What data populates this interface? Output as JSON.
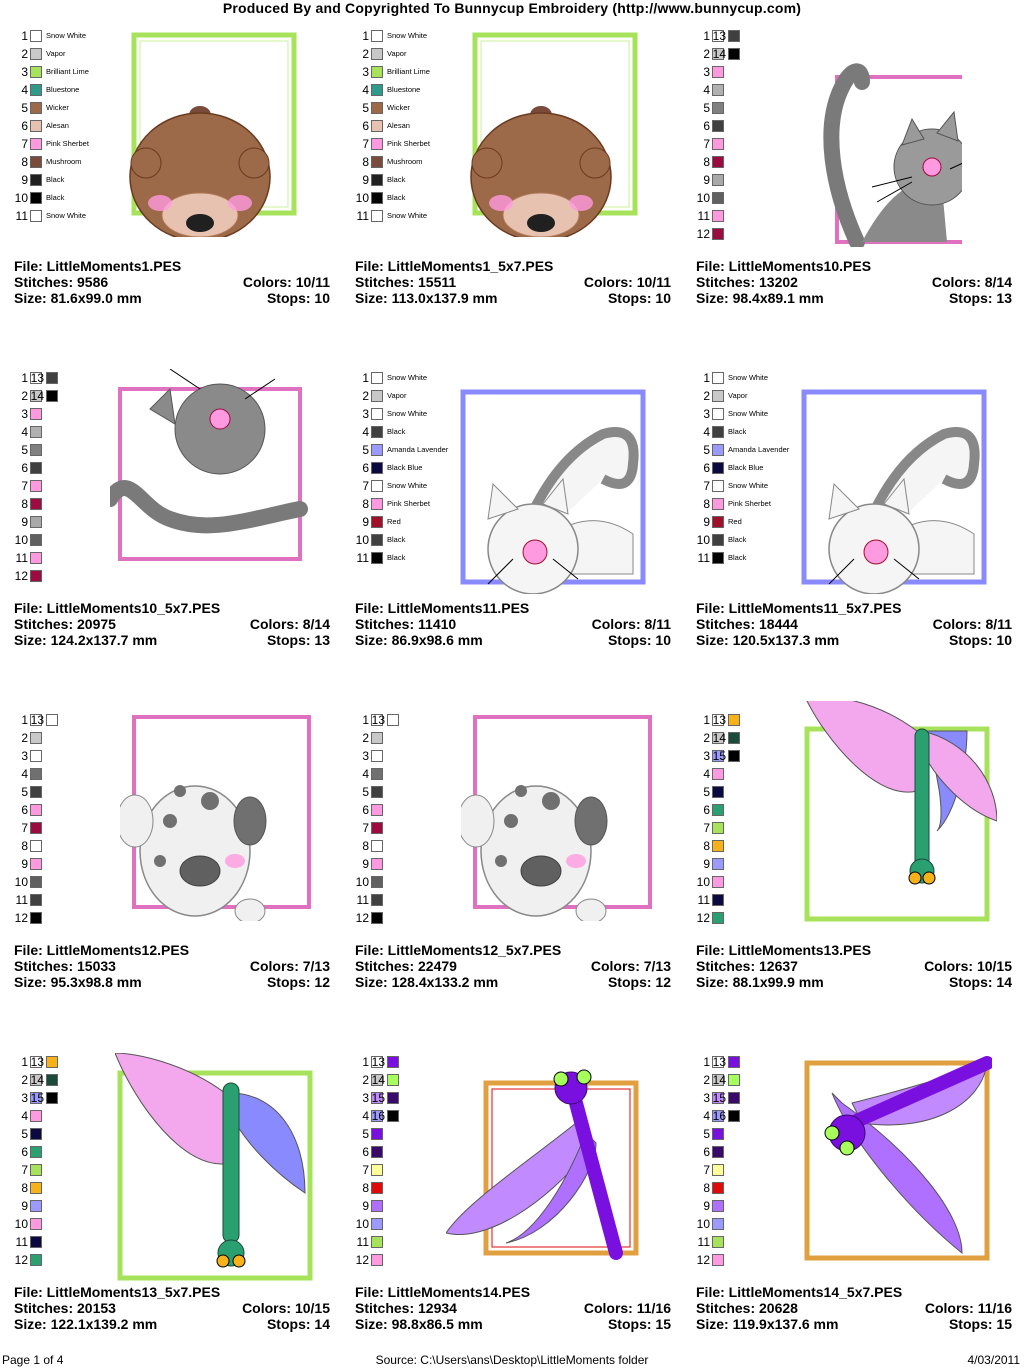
{
  "header": {
    "title": "Produced By and Copyrighted To Bunnycup Embroidery (http://www.bunnycup.com)"
  },
  "labels": {
    "file": "File:",
    "stitches": "Stitches:",
    "size": "Size:",
    "colors": "Colors:",
    "stops": "Stops:"
  },
  "designs": [
    {
      "file": "LittleMoments1.PES",
      "stitches": "9586",
      "size": "81.6x99.0 mm",
      "colors": "10/11",
      "stops": "10",
      "art": "bear",
      "palette": [
        {
          "n": "1",
          "c": "#ffffff",
          "name": "Snow White"
        },
        {
          "n": "2",
          "c": "#c8c8c8",
          "name": "Vapor"
        },
        {
          "n": "3",
          "c": "#a6e35a",
          "name": "Brilliant Lime"
        },
        {
          "n": "4",
          "c": "#2f9a8a",
          "name": "Bluestone"
        },
        {
          "n": "5",
          "c": "#9c6a48",
          "name": "Wicker"
        },
        {
          "n": "6",
          "c": "#e8c2b0",
          "name": "Alesan"
        },
        {
          "n": "7",
          "c": "#ff9ae0",
          "name": "Pink Sherbet"
        },
        {
          "n": "8",
          "c": "#7a4a3a",
          "name": "Mushroom"
        },
        {
          "n": "9",
          "c": "#202020",
          "name": "Black"
        },
        {
          "n": "10",
          "c": "#000000",
          "name": "Black"
        },
        {
          "n": "11",
          "c": "#ffffff",
          "name": "Snow White"
        }
      ],
      "palette2": []
    },
    {
      "file": "LittleMoments1_5x7.PES",
      "stitches": "15511",
      "size": "113.0x137.9 mm",
      "colors": "10/11",
      "stops": "10",
      "art": "bear",
      "palette": [
        {
          "n": "1",
          "c": "#ffffff",
          "name": "Snow White"
        },
        {
          "n": "2",
          "c": "#c8c8c8",
          "name": "Vapor"
        },
        {
          "n": "3",
          "c": "#a6e35a",
          "name": "Brilliant Lime"
        },
        {
          "n": "4",
          "c": "#2f9a8a",
          "name": "Bluestone"
        },
        {
          "n": "5",
          "c": "#9c6a48",
          "name": "Wicker"
        },
        {
          "n": "6",
          "c": "#e8c2b0",
          "name": "Alesan"
        },
        {
          "n": "7",
          "c": "#ff9ae0",
          "name": "Pink Sherbet"
        },
        {
          "n": "8",
          "c": "#7a4a3a",
          "name": "Mushroom"
        },
        {
          "n": "9",
          "c": "#202020",
          "name": "Black"
        },
        {
          "n": "10",
          "c": "#000000",
          "name": "Black"
        },
        {
          "n": "11",
          "c": "#ffffff",
          "name": "Snow White"
        }
      ],
      "palette2": []
    },
    {
      "file": "LittleMoments10.PES",
      "stitches": "13202",
      "size": "98.4x89.1 mm",
      "colors": "8/14",
      "stops": "13",
      "art": "cat-gray",
      "palette": [
        {
          "n": "1",
          "c": "#ffffff",
          "name": ""
        },
        {
          "n": "2",
          "c": "#c8c8c8",
          "name": ""
        },
        {
          "n": "3",
          "c": "#ff9ae0",
          "name": ""
        },
        {
          "n": "4",
          "c": "#b0b0b0",
          "name": ""
        },
        {
          "n": "5",
          "c": "#808080",
          "name": ""
        },
        {
          "n": "6",
          "c": "#404040",
          "name": ""
        },
        {
          "n": "7",
          "c": "#ff9ae0",
          "name": ""
        },
        {
          "n": "8",
          "c": "#9c0a40",
          "name": ""
        },
        {
          "n": "9",
          "c": "#a8a8a8",
          "name": ""
        },
        {
          "n": "10",
          "c": "#606060",
          "name": ""
        },
        {
          "n": "11",
          "c": "#ff9ae0",
          "name": ""
        },
        {
          "n": "12",
          "c": "#9c0a40",
          "name": ""
        }
      ],
      "palette2": [
        {
          "n": "13",
          "c": "#404040"
        },
        {
          "n": "14",
          "c": "#000000"
        }
      ]
    },
    {
      "file": "LittleMoments10_5x7.PES",
      "stitches": "20975",
      "size": "124.2x137.7 mm",
      "colors": "8/14",
      "stops": "13",
      "art": "cat-gray2",
      "palette": [
        {
          "n": "1",
          "c": "#ffffff",
          "name": ""
        },
        {
          "n": "2",
          "c": "#c8c8c8",
          "name": ""
        },
        {
          "n": "3",
          "c": "#ff9ae0",
          "name": ""
        },
        {
          "n": "4",
          "c": "#b0b0b0",
          "name": ""
        },
        {
          "n": "5",
          "c": "#808080",
          "name": ""
        },
        {
          "n": "6",
          "c": "#404040",
          "name": ""
        },
        {
          "n": "7",
          "c": "#ff9ae0",
          "name": ""
        },
        {
          "n": "8",
          "c": "#9c0a40",
          "name": ""
        },
        {
          "n": "9",
          "c": "#a8a8a8",
          "name": ""
        },
        {
          "n": "10",
          "c": "#606060",
          "name": ""
        },
        {
          "n": "11",
          "c": "#ff9ae0",
          "name": ""
        },
        {
          "n": "12",
          "c": "#9c0a40",
          "name": ""
        }
      ],
      "palette2": [
        {
          "n": "13",
          "c": "#404040"
        },
        {
          "n": "14",
          "c": "#000000"
        }
      ]
    },
    {
      "file": "LittleMoments11.PES",
      "stitches": "11410",
      "size": "86.9x98.6 mm",
      "colors": "8/11",
      "stops": "10",
      "art": "cat-white",
      "palette": [
        {
          "n": "1",
          "c": "#ffffff",
          "name": "Snow White"
        },
        {
          "n": "2",
          "c": "#c8c8c8",
          "name": "Vapor"
        },
        {
          "n": "3",
          "c": "#ffffff",
          "name": "Snow White"
        },
        {
          "n": "4",
          "c": "#404040",
          "name": "Black"
        },
        {
          "n": "5",
          "c": "#9a9aff",
          "name": "Amanda Lavender"
        },
        {
          "n": "6",
          "c": "#0a0a40",
          "name": "Black Blue"
        },
        {
          "n": "7",
          "c": "#ffffff",
          "name": "Snow White"
        },
        {
          "n": "8",
          "c": "#ff9ae0",
          "name": "Pink Sherbet"
        },
        {
          "n": "9",
          "c": "#a0102a",
          "name": "Red"
        },
        {
          "n": "10",
          "c": "#404040",
          "name": "Black"
        },
        {
          "n": "11",
          "c": "#000000",
          "name": "Black"
        }
      ],
      "palette2": []
    },
    {
      "file": "LittleMoments11_5x7.PES",
      "stitches": "18444",
      "size": "120.5x137.3 mm",
      "colors": "8/11",
      "stops": "10",
      "art": "cat-white",
      "palette": [
        {
          "n": "1",
          "c": "#ffffff",
          "name": "Snow White"
        },
        {
          "n": "2",
          "c": "#c8c8c8",
          "name": "Vapor"
        },
        {
          "n": "3",
          "c": "#ffffff",
          "name": "Snow White"
        },
        {
          "n": "4",
          "c": "#404040",
          "name": "Black"
        },
        {
          "n": "5",
          "c": "#9a9aff",
          "name": "Amanda Lavender"
        },
        {
          "n": "6",
          "c": "#0a0a40",
          "name": "Black Blue"
        },
        {
          "n": "7",
          "c": "#ffffff",
          "name": "Snow White"
        },
        {
          "n": "8",
          "c": "#ff9ae0",
          "name": "Pink Sherbet"
        },
        {
          "n": "9",
          "c": "#a0102a",
          "name": "Red"
        },
        {
          "n": "10",
          "c": "#404040",
          "name": "Black"
        },
        {
          "n": "11",
          "c": "#000000",
          "name": "Black"
        }
      ],
      "palette2": []
    },
    {
      "file": "LittleMoments12.PES",
      "stitches": "15033",
      "size": "95.3x98.8 mm",
      "colors": "7/13",
      "stops": "12",
      "art": "dog",
      "palette": [
        {
          "n": "1",
          "c": "#ffffff",
          "name": ""
        },
        {
          "n": "2",
          "c": "#c8c8c8",
          "name": ""
        },
        {
          "n": "3",
          "c": "#ffffff",
          "name": ""
        },
        {
          "n": "4",
          "c": "#707070",
          "name": ""
        },
        {
          "n": "5",
          "c": "#404040",
          "name": ""
        },
        {
          "n": "6",
          "c": "#ff9ae0",
          "name": ""
        },
        {
          "n": "7",
          "c": "#9c0a40",
          "name": ""
        },
        {
          "n": "8",
          "c": "#ffffff",
          "name": ""
        },
        {
          "n": "9",
          "c": "#ff9ae0",
          "name": ""
        },
        {
          "n": "10",
          "c": "#606060",
          "name": ""
        },
        {
          "n": "11",
          "c": "#404040",
          "name": ""
        },
        {
          "n": "12",
          "c": "#000000",
          "name": ""
        }
      ],
      "palette2": [
        {
          "n": "13",
          "c": "#ffffff"
        }
      ]
    },
    {
      "file": "LittleMoments12_5x7.PES",
      "stitches": "22479",
      "size": "128.4x133.2 mm",
      "colors": "7/13",
      "stops": "12",
      "art": "dog",
      "palette": [
        {
          "n": "1",
          "c": "#ffffff",
          "name": ""
        },
        {
          "n": "2",
          "c": "#c8c8c8",
          "name": ""
        },
        {
          "n": "3",
          "c": "#ffffff",
          "name": ""
        },
        {
          "n": "4",
          "c": "#707070",
          "name": ""
        },
        {
          "n": "5",
          "c": "#404040",
          "name": ""
        },
        {
          "n": "6",
          "c": "#ff9ae0",
          "name": ""
        },
        {
          "n": "7",
          "c": "#9c0a40",
          "name": ""
        },
        {
          "n": "8",
          "c": "#ffffff",
          "name": ""
        },
        {
          "n": "9",
          "c": "#ff9ae0",
          "name": ""
        },
        {
          "n": "10",
          "c": "#606060",
          "name": ""
        },
        {
          "n": "11",
          "c": "#404040",
          "name": ""
        },
        {
          "n": "12",
          "c": "#000000",
          "name": ""
        }
      ],
      "palette2": [
        {
          "n": "13",
          "c": "#ffffff"
        }
      ]
    },
    {
      "file": "LittleMoments13.PES",
      "stitches": "12637",
      "size": "88.1x99.9 mm",
      "colors": "10/15",
      "stops": "14",
      "art": "dragonfly-green",
      "palette": [
        {
          "n": "1",
          "c": "#ffffff",
          "name": ""
        },
        {
          "n": "2",
          "c": "#c8c8c8",
          "name": ""
        },
        {
          "n": "3",
          "c": "#9a9aff",
          "name": ""
        },
        {
          "n": "4",
          "c": "#ff9ae0",
          "name": ""
        },
        {
          "n": "5",
          "c": "#0a0a40",
          "name": ""
        },
        {
          "n": "6",
          "c": "#2aa070",
          "name": ""
        },
        {
          "n": "7",
          "c": "#a6e35a",
          "name": ""
        },
        {
          "n": "8",
          "c": "#f7b21a",
          "name": ""
        },
        {
          "n": "9",
          "c": "#9a9aff",
          "name": ""
        },
        {
          "n": "10",
          "c": "#ff9ae0",
          "name": ""
        },
        {
          "n": "11",
          "c": "#0a0a40",
          "name": ""
        },
        {
          "n": "12",
          "c": "#2aa070",
          "name": ""
        }
      ],
      "palette2": [
        {
          "n": "13",
          "c": "#f7b21a"
        },
        {
          "n": "14",
          "c": "#1a4a3a"
        },
        {
          "n": "15",
          "c": "#000000"
        }
      ]
    },
    {
      "file": "LittleMoments13_5x7.PES",
      "stitches": "20153",
      "size": "122.1x139.2 mm",
      "colors": "10/15",
      "stops": "14",
      "art": "dragonfly-green2",
      "palette": [
        {
          "n": "1",
          "c": "#ffffff",
          "name": ""
        },
        {
          "n": "2",
          "c": "#c8c8c8",
          "name": ""
        },
        {
          "n": "3",
          "c": "#9a9aff",
          "name": ""
        },
        {
          "n": "4",
          "c": "#ff9ae0",
          "name": ""
        },
        {
          "n": "5",
          "c": "#0a0a40",
          "name": ""
        },
        {
          "n": "6",
          "c": "#2aa070",
          "name": ""
        },
        {
          "n": "7",
          "c": "#a6e35a",
          "name": ""
        },
        {
          "n": "8",
          "c": "#f7b21a",
          "name": ""
        },
        {
          "n": "9",
          "c": "#9a9aff",
          "name": ""
        },
        {
          "n": "10",
          "c": "#ff9ae0",
          "name": ""
        },
        {
          "n": "11",
          "c": "#0a0a40",
          "name": ""
        },
        {
          "n": "12",
          "c": "#2aa070",
          "name": ""
        }
      ],
      "palette2": [
        {
          "n": "13",
          "c": "#f7b21a"
        },
        {
          "n": "14",
          "c": "#1a4a3a"
        },
        {
          "n": "15",
          "c": "#000000"
        }
      ]
    },
    {
      "file": "LittleMoments14.PES",
      "stitches": "12934",
      "size": "98.8x86.5 mm",
      "colors": "11/16",
      "stops": "15",
      "art": "dragonfly-purple",
      "palette": [
        {
          "n": "1",
          "c": "#ffffff",
          "name": ""
        },
        {
          "n": "2",
          "c": "#c8c8c8",
          "name": ""
        },
        {
          "n": "3",
          "c": "#c28aff",
          "name": ""
        },
        {
          "n": "4",
          "c": "#9a9aff",
          "name": ""
        },
        {
          "n": "5",
          "c": "#7a10e0",
          "name": ""
        },
        {
          "n": "6",
          "c": "#3a0a6a",
          "name": ""
        },
        {
          "n": "7",
          "c": "#ffff9a",
          "name": ""
        },
        {
          "n": "8",
          "c": "#e00a0a",
          "name": ""
        },
        {
          "n": "9",
          "c": "#b070ff",
          "name": ""
        },
        {
          "n": "10",
          "c": "#9a9aff",
          "name": ""
        },
        {
          "n": "11",
          "c": "#a6e35a",
          "name": ""
        },
        {
          "n": "12",
          "c": "#ff9ae0",
          "name": ""
        }
      ],
      "palette2": [
        {
          "n": "13",
          "c": "#7a10e0"
        },
        {
          "n": "14",
          "c": "#a6ff5a"
        },
        {
          "n": "15",
          "c": "#3a0a6a"
        },
        {
          "n": "16",
          "c": "#000000"
        }
      ]
    },
    {
      "file": "LittleMoments14_5x7.PES",
      "stitches": "20628",
      "size": "119.9x137.6 mm",
      "colors": "11/16",
      "stops": "15",
      "art": "dragonfly-purple2",
      "palette": [
        {
          "n": "1",
          "c": "#ffffff",
          "name": ""
        },
        {
          "n": "2",
          "c": "#c8c8c8",
          "name": ""
        },
        {
          "n": "3",
          "c": "#c28aff",
          "name": ""
        },
        {
          "n": "4",
          "c": "#9a9aff",
          "name": ""
        },
        {
          "n": "5",
          "c": "#7a10e0",
          "name": ""
        },
        {
          "n": "6",
          "c": "#3a0a6a",
          "name": ""
        },
        {
          "n": "7",
          "c": "#ffff9a",
          "name": ""
        },
        {
          "n": "8",
          "c": "#e00a0a",
          "name": ""
        },
        {
          "n": "9",
          "c": "#b070ff",
          "name": ""
        },
        {
          "n": "10",
          "c": "#9a9aff",
          "name": ""
        },
        {
          "n": "11",
          "c": "#a6e35a",
          "name": ""
        },
        {
          "n": "12",
          "c": "#ff9ae0",
          "name": ""
        }
      ],
      "palette2": [
        {
          "n": "13",
          "c": "#7a10e0"
        },
        {
          "n": "14",
          "c": "#a6ff5a"
        },
        {
          "n": "15",
          "c": "#3a0a6a"
        },
        {
          "n": "16",
          "c": "#000000"
        }
      ]
    }
  ],
  "footer": {
    "page": "Page 1 of 4",
    "source": "Source: C:\\Users\\ans\\Desktop\\LittleMoments folder",
    "date": "4/03/2011"
  }
}
